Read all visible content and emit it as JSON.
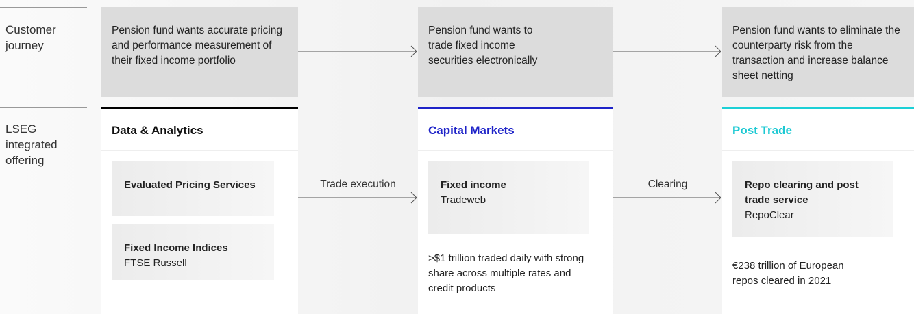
{
  "row_labels": {
    "journey": "Customer journey",
    "offering": "LSEG integrated offering"
  },
  "columns": [
    {
      "need": "Pension fund wants accurate pricing and performance measurement of their fixed income portfolio",
      "title": "Data & Analytics",
      "cards": [
        {
          "title": "Evaluated Pricing Services"
        },
        {
          "title": "Fixed Income Indices",
          "subtitle": "FTSE Russell"
        }
      ]
    },
    {
      "need": "Pension fund wants to trade fixed income securities electronically",
      "title": "Capital Markets",
      "cards": [
        {
          "title": "Fixed income",
          "subtitle": "Tradeweb"
        }
      ],
      "note": ">$1 trillion traded daily with strong share across multiple rates and credit products"
    },
    {
      "need": "Pension fund wants to eliminate the counterparty risk from the transaction and increase balance sheet netting",
      "title": "Post Trade",
      "cards": [
        {
          "title": "Repo clearing and post trade service",
          "subtitle": "RepoClear"
        }
      ],
      "note": "€238 trillion of European repos cleared in 2021"
    }
  ],
  "connectors": [
    "Trade execution",
    "Clearing"
  ]
}
